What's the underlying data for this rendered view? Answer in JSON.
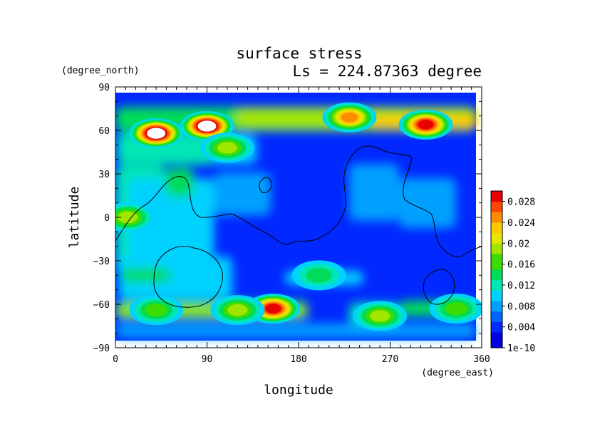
{
  "chart_data": {
    "type": "heatmap",
    "title": "surface stress",
    "subtitle": "Ls = 224.87363 degree",
    "xlabel": "longitude",
    "ylabel": "latitude",
    "x_unit": "(degree_east)",
    "y_unit": "(degree_north)",
    "xlim": [
      0,
      360
    ],
    "ylim": [
      -90,
      90
    ],
    "x_ticks": [
      "0",
      "90",
      "180",
      "270",
      "360"
    ],
    "y_ticks": [
      "90",
      "60",
      "30",
      "0",
      "−30",
      "−60",
      "−90"
    ],
    "colorbar": {
      "range": [
        0,
        0.03
      ],
      "tick_labels": [
        "0.028",
        "0.024",
        "0.02",
        "0.016",
        "0.012",
        "0.008",
        "0.004",
        "1e-10"
      ],
      "tick_values": [
        0.028,
        0.024,
        0.02,
        0.016,
        0.012,
        0.008,
        0.004,
        0
      ]
    },
    "grid": false,
    "hotspots": [
      {
        "lon": 90,
        "lat": 63,
        "value": 0.034
      },
      {
        "lon": 40,
        "lat": 58,
        "value": 0.032
      },
      {
        "lon": 230,
        "lat": 69,
        "value": 0.022
      },
      {
        "lon": 305,
        "lat": 64,
        "value": 0.026
      },
      {
        "lon": 155,
        "lat": -63,
        "value": 0.026
      },
      {
        "lon": 120,
        "lat": -64,
        "value": 0.016
      },
      {
        "lon": 40,
        "lat": -64,
        "value": 0.014
      },
      {
        "lon": 260,
        "lat": -68,
        "value": 0.016
      },
      {
        "lon": 335,
        "lat": -63,
        "value": 0.014
      },
      {
        "lon": 110,
        "lat": 48,
        "value": 0.016
      },
      {
        "lon": 12,
        "lat": 0,
        "value": 0.016
      },
      {
        "lon": 200,
        "lat": -40,
        "value": 0.011
      }
    ]
  },
  "colors": {
    "colormap": [
      "#0000e0",
      "#0028ff",
      "#0064ff",
      "#00a0ff",
      "#00d2ff",
      "#00e6b4",
      "#00dc5a",
      "#3cdc00",
      "#a0e600",
      "#e6e600",
      "#ffc800",
      "#ff8c00",
      "#ff4600",
      "#e60000",
      "#ffffff"
    ],
    "outline": "#000000"
  }
}
